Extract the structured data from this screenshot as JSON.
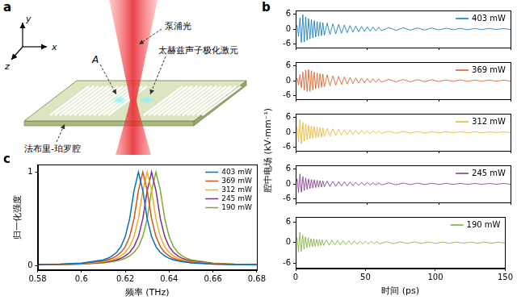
{
  "diagram": {
    "panel": "a",
    "axes": [
      "x",
      "y",
      "z"
    ],
    "pump": "泵浦光",
    "polariton": "太赫兹声子极化激元",
    "point": "A",
    "cavity": "法布里-珀罗腔"
  },
  "chart_data": [
    {
      "panel": "b",
      "type": "line",
      "x": [
        0,
        1,
        2,
        3,
        4,
        5,
        6,
        7,
        8,
        9,
        10,
        11,
        12,
        13,
        14,
        15,
        16,
        17,
        18,
        19,
        20,
        22,
        24,
        26,
        28,
        30,
        32,
        34,
        36,
        38,
        40,
        42,
        44,
        46,
        48,
        50,
        52,
        54,
        56,
        58,
        60,
        65,
        70,
        75,
        80,
        85,
        90,
        95,
        100,
        105,
        110,
        115,
        120,
        125,
        130,
        135,
        140,
        145,
        150
      ],
      "series": [
        {
          "name": "403 mW",
          "color": "#0072bd",
          "values": [
            0,
            1.5,
            -3,
            4.5,
            -5.5,
            5.8,
            -5.2,
            4.8,
            -4.5,
            4.2,
            -4,
            3.8,
            -3.6,
            3.4,
            -3.2,
            3,
            -2.9,
            2.8,
            -2.7,
            2.6,
            -2.5,
            2.4,
            -2.2,
            2.1,
            -2,
            1.9,
            -1.7,
            1.6,
            -1.5,
            1.4,
            -1.3,
            1.2,
            -1.1,
            1.05,
            -1,
            0.9,
            -0.85,
            0.8,
            -0.75,
            0.7,
            -0.65,
            0.6,
            -0.55,
            0.5,
            -0.45,
            0.45,
            -0.4,
            0.4,
            -0.35,
            0.35,
            -0.3,
            0.3,
            -0.3,
            0.25,
            -0.25,
            0.25,
            -0.2,
            0.2,
            -0.2
          ]
        }
      ],
      "xlim": [
        0,
        150
      ],
      "xticks": [
        0,
        50,
        100,
        150
      ],
      "ylim": [
        -7.5,
        7.5
      ],
      "yticks": [
        -6,
        0,
        6
      ],
      "grid": false,
      "legend": "upper right",
      "tick_labels": "y"
    },
    {
      "type": "line",
      "x": [
        0,
        1,
        2,
        3,
        4,
        5,
        6,
        7,
        8,
        9,
        10,
        11,
        12,
        13,
        14,
        15,
        16,
        17,
        18,
        19,
        20,
        22,
        24,
        26,
        28,
        30,
        32,
        34,
        36,
        38,
        40,
        42,
        44,
        46,
        48,
        50,
        52,
        54,
        56,
        58,
        60,
        65,
        70,
        75,
        80,
        85,
        90,
        95,
        100,
        105,
        110,
        115,
        120,
        125,
        130,
        135,
        140,
        145,
        150
      ],
      "series": [
        {
          "name": "369 mW",
          "color": "#d95319",
          "values": [
            0,
            1,
            -1.8,
            2.5,
            -3,
            3.5,
            -3.8,
            4.2,
            -4.4,
            4.5,
            -4.3,
            4,
            -3.8,
            3.5,
            -3.3,
            3.1,
            -3,
            2.8,
            -2.7,
            2.6,
            -2.5,
            2.3,
            -2.1,
            2,
            -1.8,
            1.7,
            -1.6,
            1.5,
            -1.4,
            1.3,
            -1.2,
            1.1,
            -1,
            0.95,
            -0.9,
            0.85,
            -0.8,
            0.75,
            -0.7,
            0.65,
            -0.6,
            0.55,
            -0.5,
            0.45,
            -0.45,
            0.4,
            -0.4,
            0.35,
            -0.35,
            0.3,
            -0.3,
            0.3,
            -0.3,
            0.25,
            -0.25,
            0.25,
            -0.2,
            0.2,
            -0.2
          ]
        }
      ],
      "xlim": [
        0,
        150
      ],
      "xticks": [
        0,
        50,
        100,
        150
      ],
      "ylim": [
        -7.5,
        7.5
      ],
      "yticks": [
        -6,
        0,
        6
      ],
      "grid": false,
      "legend": "upper right",
      "tick_labels": "y"
    },
    {
      "type": "line",
      "ylabel": "腔中电场 (kV·mm⁻¹)",
      "x": [
        0,
        1,
        2,
        3,
        4,
        5,
        6,
        7,
        8,
        9,
        10,
        11,
        12,
        13,
        14,
        15,
        16,
        17,
        18,
        19,
        20,
        22,
        24,
        26,
        28,
        30,
        32,
        34,
        36,
        38,
        40,
        42,
        44,
        46,
        48,
        50,
        52,
        54,
        56,
        58,
        60,
        65,
        70,
        75,
        80,
        85,
        90,
        95,
        100,
        105,
        110,
        115,
        120,
        125,
        130,
        135,
        140,
        145,
        150
      ],
      "series": [
        {
          "name": "312 mW",
          "color": "#edb120",
          "values": [
            0,
            2,
            -4,
            5,
            -4.6,
            4,
            -3.6,
            3.3,
            -3,
            2.8,
            -2.6,
            2.5,
            -2.4,
            2.3,
            -2.2,
            2.1,
            -2,
            1.9,
            -1.85,
            1.8,
            -1.7,
            1.6,
            -1.5,
            1.4,
            -1.3,
            1.2,
            -1.1,
            1.05,
            -1,
            0.95,
            -0.9,
            0.85,
            -0.8,
            0.75,
            -0.7,
            0.65,
            -0.6,
            0.55,
            -0.5,
            0.5,
            -0.45,
            0.4,
            -0.4,
            0.35,
            -0.35,
            0.3,
            -0.3,
            0.25,
            -0.25,
            0.25,
            -0.2,
            0.2,
            -0.2,
            0.2,
            -0.2,
            0.15,
            -0.15,
            0.15,
            -0.15
          ]
        }
      ],
      "xlim": [
        0,
        150
      ],
      "xticks": [
        0,
        50,
        100,
        150
      ],
      "ylim": [
        -7.5,
        7.5
      ],
      "yticks": [
        -6,
        0,
        6
      ],
      "grid": false,
      "legend": "upper right",
      "tick_labels": "y"
    },
    {
      "type": "line",
      "x": [
        0,
        1,
        2,
        3,
        4,
        5,
        6,
        7,
        8,
        9,
        10,
        11,
        12,
        13,
        14,
        15,
        16,
        17,
        18,
        19,
        20,
        22,
        24,
        26,
        28,
        30,
        32,
        34,
        36,
        38,
        40,
        42,
        44,
        46,
        48,
        50,
        52,
        54,
        56,
        58,
        60,
        65,
        70,
        75,
        80,
        85,
        90,
        95,
        100,
        105,
        110,
        115,
        120,
        125,
        130,
        135,
        140,
        145,
        150
      ],
      "series": [
        {
          "name": "245 mW",
          "color": "#7e2f8e",
          "values": [
            0,
            2,
            -3.5,
            4,
            -3.4,
            3,
            -2.7,
            2.4,
            -2.2,
            2,
            -1.9,
            1.8,
            -1.7,
            1.6,
            -1.5,
            1.45,
            -1.4,
            1.35,
            -1.3,
            1.25,
            -1.2,
            1.15,
            -1.1,
            1.05,
            -1,
            0.95,
            -0.9,
            0.85,
            -0.8,
            0.75,
            -0.7,
            0.65,
            -0.6,
            0.58,
            -0.55,
            0.52,
            -0.5,
            0.48,
            -0.45,
            0.42,
            -0.4,
            0.38,
            -0.35,
            0.33,
            -0.3,
            0.3,
            -0.28,
            0.26,
            -0.25,
            0.24,
            -0.22,
            0.2,
            -0.2,
            0.18,
            -0.18,
            0.16,
            -0.15,
            0.15,
            -0.14
          ]
        }
      ],
      "xlim": [
        0,
        150
      ],
      "xticks": [
        0,
        50,
        100,
        150
      ],
      "ylim": [
        -7.5,
        7.5
      ],
      "yticks": [
        -6,
        0,
        6
      ],
      "grid": false,
      "legend": "upper right",
      "tick_labels": "y"
    },
    {
      "type": "line",
      "xlabel": "时间 (ps)",
      "x": [
        0,
        1,
        2,
        3,
        4,
        5,
        6,
        7,
        8,
        9,
        10,
        11,
        12,
        13,
        14,
        15,
        16,
        17,
        18,
        19,
        20,
        22,
        24,
        26,
        28,
        30,
        32,
        34,
        36,
        38,
        40,
        42,
        44,
        46,
        48,
        50,
        52,
        54,
        56,
        58,
        60,
        65,
        70,
        75,
        80,
        85,
        90,
        95,
        100,
        105,
        110,
        115,
        120,
        125,
        130,
        135,
        140,
        145,
        150
      ],
      "series": [
        {
          "name": "190 mW",
          "color": "#77ac30",
          "values": [
            0,
            1.5,
            -2.8,
            3,
            -2.5,
            2.2,
            -1.9,
            1.7,
            -1.5,
            1.4,
            -1.3,
            1.2,
            -1.15,
            1.1,
            -1.05,
            1,
            -0.95,
            0.9,
            -0.88,
            0.85,
            -0.82,
            0.8,
            -0.75,
            0.7,
            -0.68,
            0.65,
            -0.62,
            0.6,
            -0.57,
            0.55,
            -0.52,
            0.5,
            -0.47,
            0.45,
            -0.43,
            0.4,
            -0.38,
            0.36,
            -0.34,
            0.32,
            -0.3,
            0.28,
            -0.27,
            0.25,
            -0.24,
            0.23,
            -0.22,
            0.21,
            -0.2,
            0.19,
            -0.18,
            0.17,
            -0.16,
            0.15,
            -0.15,
            0.14,
            -0.13,
            0.12,
            -0.12
          ]
        }
      ],
      "xlim": [
        0,
        150
      ],
      "xticks": [
        0,
        50,
        100,
        150
      ],
      "ylim": [
        -7.5,
        7.5
      ],
      "yticks": [
        -6,
        0,
        6
      ],
      "grid": false,
      "legend": "upper right"
    },
    {
      "panel": "c",
      "type": "line",
      "xlabel": "频率 (THz)",
      "ylabel": "归一化强度",
      "x": [
        0.58,
        0.59,
        0.6,
        0.61,
        0.612,
        0.614,
        0.616,
        0.618,
        0.62,
        0.622,
        0.624,
        0.626,
        0.628,
        0.63,
        0.632,
        0.634,
        0.636,
        0.638,
        0.64,
        0.642,
        0.644,
        0.646,
        0.648,
        0.65,
        0.66,
        0.67,
        0.68
      ],
      "series": [
        {
          "name": "403 mW",
          "color": "#0072bd",
          "values": [
            0.008,
            0.012,
            0.023,
            0.059,
            0.075,
            0.1,
            0.138,
            0.2,
            0.308,
            0.5,
            0.8,
            1,
            0.8,
            0.5,
            0.308,
            0.2,
            0.138,
            0.1,
            0.075,
            0.059,
            0.047,
            0.038,
            0.032,
            0.027,
            0.014,
            0.008,
            0.006
          ]
        },
        {
          "name": "369 mW",
          "color": "#d95319",
          "values": [
            0.007,
            0.011,
            0.02,
            0.047,
            0.059,
            0.075,
            0.1,
            0.138,
            0.2,
            0.308,
            0.5,
            0.8,
            1,
            0.8,
            0.5,
            0.308,
            0.2,
            0.138,
            0.1,
            0.075,
            0.059,
            0.047,
            0.038,
            0.032,
            0.015,
            0.009,
            0.006
          ]
        },
        {
          "name": "312 mW",
          "color": "#edb120",
          "values": [
            0.006,
            0.01,
            0.017,
            0.038,
            0.047,
            0.059,
            0.075,
            0.1,
            0.138,
            0.2,
            0.308,
            0.5,
            0.8,
            1,
            0.8,
            0.5,
            0.308,
            0.2,
            0.138,
            0.1,
            0.075,
            0.059,
            0.047,
            0.038,
            0.017,
            0.01,
            0.006
          ]
        },
        {
          "name": "245 mW",
          "color": "#7e2f8e",
          "values": [
            0.006,
            0.009,
            0.015,
            0.032,
            0.038,
            0.047,
            0.059,
            0.075,
            0.1,
            0.138,
            0.2,
            0.308,
            0.5,
            0.8,
            1,
            0.8,
            0.5,
            0.308,
            0.2,
            0.138,
            0.1,
            0.075,
            0.059,
            0.047,
            0.02,
            0.011,
            0.007
          ]
        },
        {
          "name": "190 mW",
          "color": "#77ac30",
          "values": [
            0.005,
            0.008,
            0.014,
            0.027,
            0.032,
            0.038,
            0.047,
            0.059,
            0.075,
            0.1,
            0.138,
            0.2,
            0.308,
            0.5,
            0.8,
            1,
            0.8,
            0.5,
            0.308,
            0.2,
            0.138,
            0.1,
            0.075,
            0.059,
            0.023,
            0.012,
            0.008
          ]
        }
      ],
      "xlim": [
        0.58,
        0.68
      ],
      "xticks": [
        0.58,
        0.6,
        0.62,
        0.64,
        0.66,
        0.68
      ],
      "ylim": [
        -0.05,
        1.08
      ],
      "yticks": [
        0,
        1
      ],
      "grid": false,
      "legend": "upper right"
    }
  ]
}
